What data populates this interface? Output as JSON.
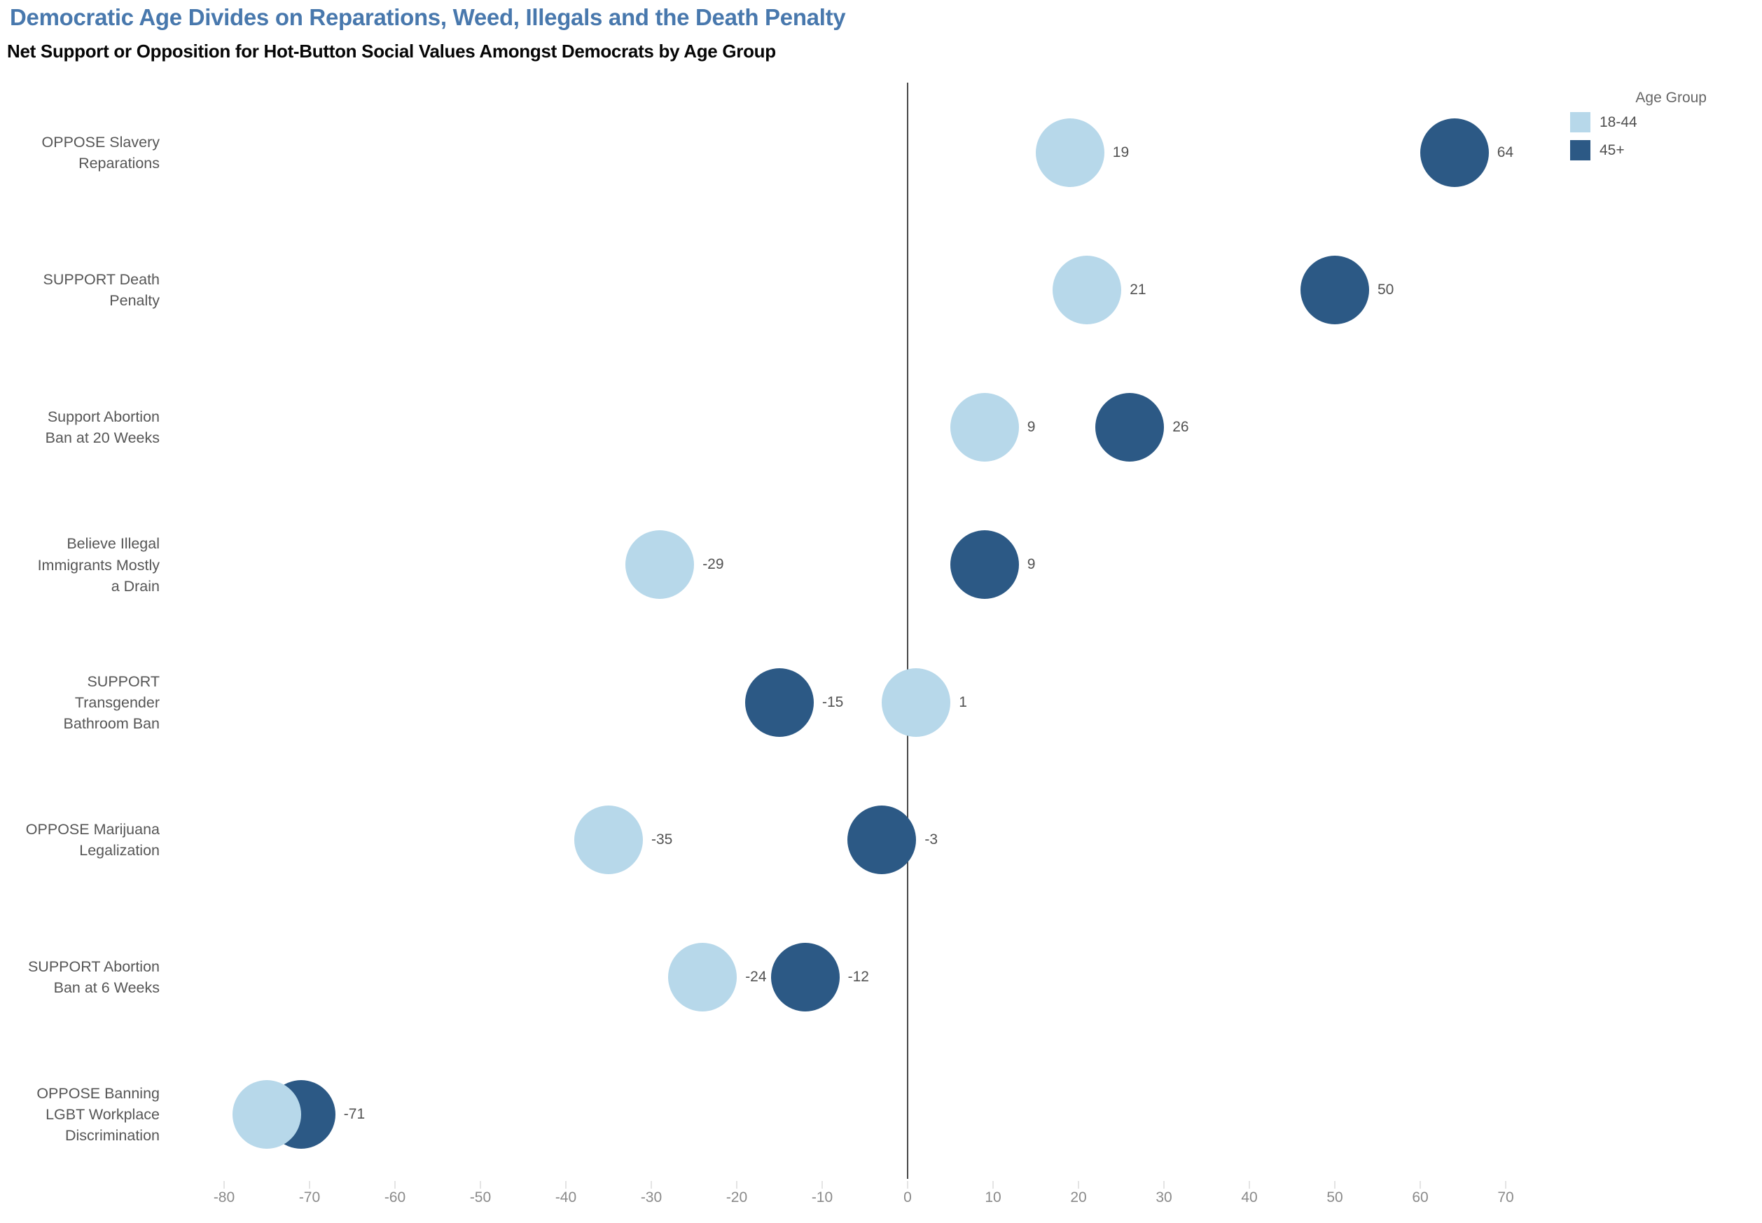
{
  "header": {
    "title": "Democratic Age Divides on Reparations, Weed, Illegals and the Death Penalty",
    "subtitle": "Net Support or Opposition for Hot-Button Social Values Amongst Democrats by Age Group"
  },
  "legend": {
    "title": "Age Group",
    "items": [
      {
        "label": "18-44",
        "color": "#b7d8ea"
      },
      {
        "label": "45+",
        "color": "#2c5985"
      }
    ]
  },
  "chart_data": {
    "type": "scatter",
    "subtype": "horizontal-dot-plot",
    "title": "Democratic Age Divides on Reparations, Weed, Illegals and the Death Penalty",
    "subtitle": "Net Support or Opposition for Hot-Button Social Values Amongst Democrats by Age Group",
    "categories": [
      "OPPOSE Slavery Reparations",
      "SUPPORT Death Penalty",
      "Support Abortion Ban at 20 Weeks",
      "Believe Illegal Immigrants Mostly a Drain",
      "SUPPORT Transgender Bathroom Ban",
      "OPPOSE Marijuana Legalization",
      "SUPPORT Abortion Ban at 6 Weeks",
      "OPPOSE Banning LGBT Workplace Discrimination"
    ],
    "categories_wrapped": [
      [
        "OPPOSE Slavery",
        "Reparations"
      ],
      [
        "SUPPORT Death",
        "Penalty"
      ],
      [
        "Support Abortion",
        "Ban at 20 Weeks"
      ],
      [
        "Believe Illegal",
        "Immigrants Mostly",
        "a Drain"
      ],
      [
        "SUPPORT",
        "Transgender",
        "Bathroom Ban"
      ],
      [
        "OPPOSE Marijuana",
        "Legalization"
      ],
      [
        "SUPPORT Abortion",
        "Ban at 6 Weeks"
      ],
      [
        "OPPOSE Banning",
        "LGBT Workplace",
        "Discrimination"
      ]
    ],
    "series": [
      {
        "name": "18-44",
        "color": "#b7d8ea",
        "values": [
          19,
          21,
          9,
          -29,
          1,
          -35,
          -24,
          -75
        ],
        "labels": [
          "19",
          "21",
          "9",
          "-29",
          "1",
          "-35",
          "-24",
          ""
        ]
      },
      {
        "name": "45+",
        "color": "#2c5985",
        "values": [
          64,
          50,
          26,
          9,
          -15,
          -3,
          -12,
          -71
        ],
        "labels": [
          "64",
          "50",
          "26",
          "9",
          "-15",
          "-3",
          "-12",
          "-71"
        ]
      }
    ],
    "x_ticks": [
      -80,
      -70,
      -60,
      -50,
      -40,
      -30,
      -20,
      -10,
      0,
      10,
      20,
      30,
      40,
      50,
      60,
      70
    ],
    "xlim": [
      -88,
      100
    ],
    "zero_line": true,
    "grid": false,
    "legend_position": "top-right"
  }
}
